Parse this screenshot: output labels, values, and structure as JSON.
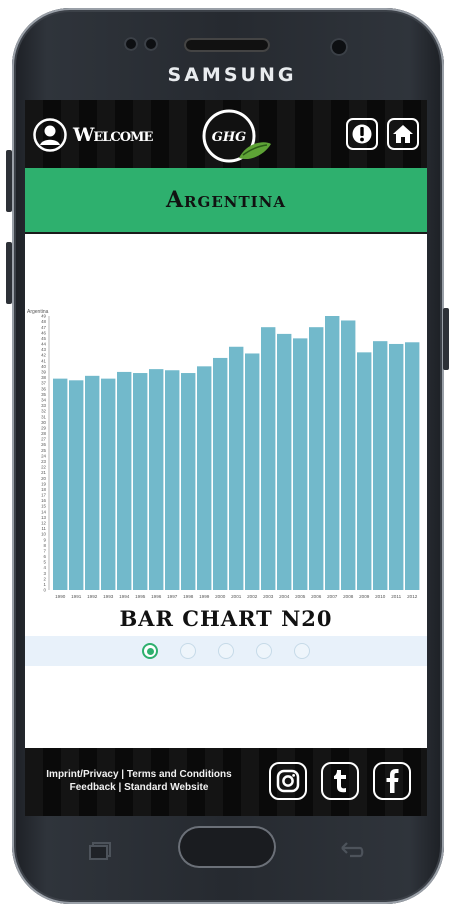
{
  "device": {
    "brand": "SAMSUNG"
  },
  "header": {
    "welcome_label": "Welcome",
    "logo_text": "GHG"
  },
  "page": {
    "title": "Argentina"
  },
  "chart_caption": "BAR CHART N20",
  "carousel": {
    "count": 5,
    "active_index": 0
  },
  "footer": {
    "links_line1": "Imprint/Privacy | Terms and Conditions",
    "links_line2": "Feedback | Standard Website"
  },
  "colors": {
    "accent": "#2eb06e",
    "bar": "#72b9cb",
    "header_bg": "#0a0a0a"
  },
  "chart_data": {
    "type": "bar",
    "title": "Argentina",
    "xlabel": "",
    "ylabel": "",
    "ylim": [
      0,
      49
    ],
    "yticks": [
      0,
      1,
      2,
      3,
      4,
      5,
      6,
      7,
      8,
      9,
      10,
      11,
      12,
      13,
      14,
      15,
      16,
      17,
      18,
      19,
      20,
      21,
      22,
      23,
      24,
      25,
      26,
      27,
      28,
      29,
      30,
      31,
      32,
      33,
      34,
      35,
      36,
      37,
      38,
      39,
      40,
      41,
      42,
      43,
      44,
      45,
      46,
      47,
      48,
      49
    ],
    "categories": [
      "1990",
      "1991",
      "1992",
      "1993",
      "1994",
      "1995",
      "1996",
      "1997",
      "1998",
      "1999",
      "2000",
      "2001",
      "2002",
      "2003",
      "2004",
      "2005",
      "2006",
      "2007",
      "2008",
      "2009",
      "2010",
      "2011",
      "2012"
    ],
    "values": [
      37.8,
      37.5,
      38.3,
      37.8,
      39.0,
      38.8,
      39.5,
      39.3,
      38.8,
      40.0,
      41.5,
      43.5,
      42.3,
      47.0,
      45.8,
      45.0,
      47.0,
      49.0,
      48.2,
      42.5,
      44.5,
      44.0,
      44.3
    ]
  }
}
